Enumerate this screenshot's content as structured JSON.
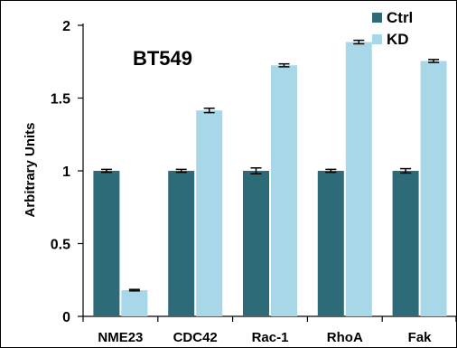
{
  "chart_data": {
    "type": "bar",
    "title": "BT549",
    "ylabel": "Arbitrary Units",
    "xlabel": "",
    "categories": [
      "NME23",
      "CDC42",
      "Rac-1",
      "RhoA",
      "Fak"
    ],
    "series": [
      {
        "name": "Ctrl",
        "color": "#2e6b78",
        "values": [
          1.0,
          1.0,
          1.0,
          1.0,
          1.0
        ],
        "errors": [
          0.01,
          0.01,
          0.02,
          0.01,
          0.015
        ]
      },
      {
        "name": "KD",
        "color": "#a8d8e8",
        "values": [
          0.18,
          1.415,
          1.725,
          1.885,
          1.755
        ],
        "errors": [
          0.005,
          0.015,
          0.01,
          0.012,
          0.01
        ]
      }
    ],
    "ylim": [
      0,
      2
    ],
    "yticks": [
      {
        "value": 0,
        "label": "0"
      },
      {
        "value": 0.5,
        "label": "0.5"
      },
      {
        "value": 1,
        "label": "1"
      },
      {
        "value": 1.5,
        "label": "1.5"
      },
      {
        "value": 2,
        "label": "2"
      }
    ],
    "grid": false,
    "legend_position": "top-right"
  }
}
